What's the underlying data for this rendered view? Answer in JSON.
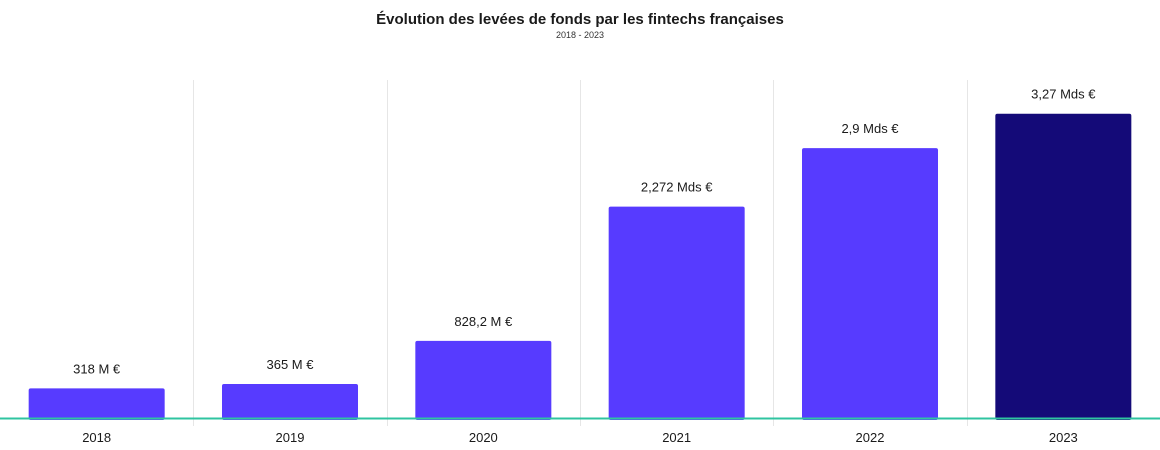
{
  "chart_data": {
    "type": "bar",
    "title": "Évolution des levées de fonds par les fintechs françaises",
    "subtitle": "2018 - 2023",
    "categories": [
      "2018",
      "2019",
      "2020",
      "2021",
      "2022",
      "2023"
    ],
    "values": [
      0.318,
      0.365,
      0.8282,
      2.272,
      2.9,
      3.27
    ],
    "value_unit": "Mds €",
    "data_labels": [
      "318 M €",
      "365 M €",
      "828,2 M €",
      "2,272 Mds €",
      "2,9 Mds €",
      "3,27 Mds €"
    ],
    "ylim": [
      0,
      3.6
    ],
    "grid": "vertical separators",
    "legend": "none",
    "colors": {
      "bar": "#573BFF",
      "bar_highlight": "#140A78",
      "baseline": "#2FC4A0",
      "grid": "#E6E6E6"
    },
    "highlight_index": 5
  }
}
